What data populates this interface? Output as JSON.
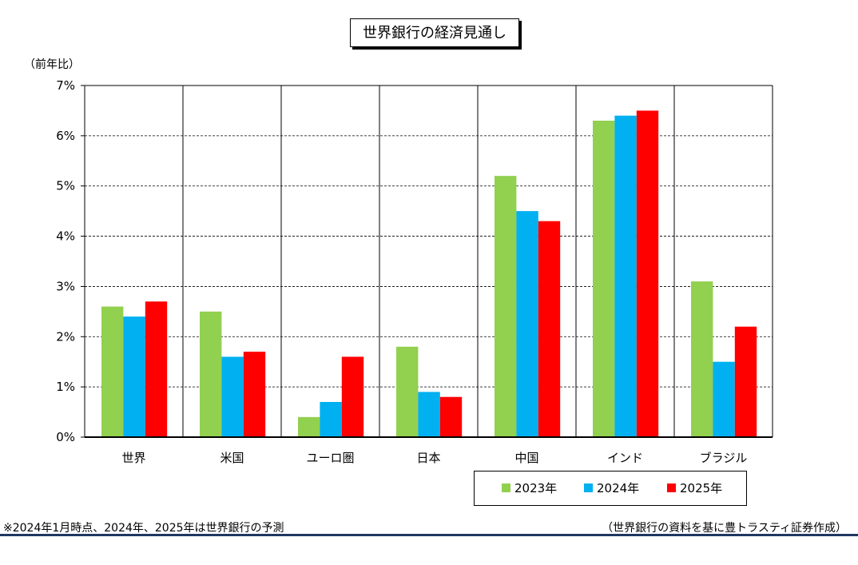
{
  "chart_data": {
    "type": "bar",
    "title": "世界銀行の経済見通し",
    "ylabel": "（前年比）",
    "ylim": [
      0,
      7
    ],
    "y_ticks": [
      "0%",
      "1%",
      "2%",
      "3%",
      "4%",
      "5%",
      "6%",
      "7%"
    ],
    "y_unit": "%",
    "grid": "horizontal dashed gridlines, vertical solid category separators",
    "legend_position": "bottom-right",
    "categories": [
      "世界",
      "米国",
      "ユーロ圏",
      "日本",
      "中国",
      "インド",
      "ブラジル"
    ],
    "series": [
      {
        "name": "2023年",
        "color": "#92d050",
        "values": [
          2.6,
          2.5,
          0.4,
          1.8,
          5.2,
          6.3,
          3.1
        ]
      },
      {
        "name": "2024年",
        "color": "#00b0f0",
        "values": [
          2.4,
          1.6,
          0.7,
          0.9,
          4.5,
          6.4,
          1.5
        ]
      },
      {
        "name": "2025年",
        "color": "#ff0000",
        "values": [
          2.7,
          1.7,
          1.6,
          0.8,
          4.3,
          6.5,
          2.2
        ]
      }
    ]
  },
  "footnote": "※2024年1月時点、2024年、2025年は世界銀行の予測",
  "source": "（世界銀行の資料を基に豊トラスティ証券作成）"
}
